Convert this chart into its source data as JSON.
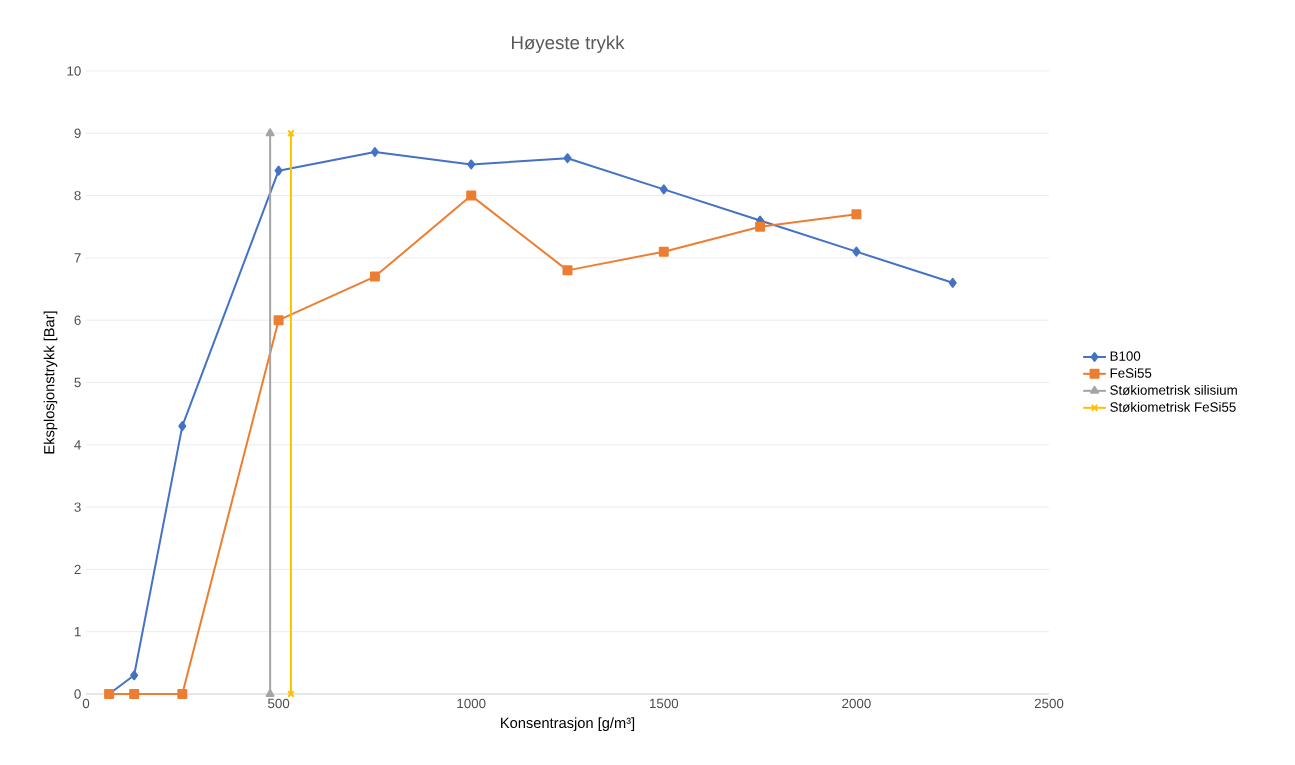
{
  "chart_data": {
    "type": "line",
    "title": "Høyeste trykk",
    "xlabel": "Konsentrasjon [g/m³]",
    "ylabel": "Eksplosjonstrykk [Bar]",
    "xlim": [
      0,
      2500
    ],
    "xticks": [
      0,
      500,
      1000,
      1500,
      2000,
      2500
    ],
    "ylim": [
      0,
      10
    ],
    "yticks": [
      0,
      1,
      2,
      3,
      4,
      5,
      6,
      7,
      8,
      9,
      10
    ],
    "grid": "y",
    "legend": "right",
    "series": [
      {
        "name": "B100",
        "color": "#4472c4",
        "marker": "diamond",
        "x": [
          60,
          125,
          250,
          500,
          750,
          1000,
          1250,
          1500,
          1750,
          2000,
          2250
        ],
        "values": [
          0,
          0.3,
          4.3,
          8.4,
          8.7,
          8.5,
          8.6,
          8.1,
          7.6,
          7.1,
          6.6
        ]
      },
      {
        "name": "FeSi55",
        "color": "#ed7d31",
        "marker": "square",
        "x": [
          60,
          125,
          250,
          500,
          750,
          1000,
          1250,
          1500,
          1750,
          2000
        ],
        "values": [
          0,
          0,
          0,
          6.0,
          6.7,
          8.0,
          6.8,
          7.1,
          7.5,
          7.7
        ]
      },
      {
        "name": "Støkiometrisk silisium",
        "color": "#a5a5a5",
        "marker": "triangle",
        "x": [
          478,
          478
        ],
        "values": [
          0,
          9
        ]
      },
      {
        "name": "Støkiometrisk FeSi55",
        "color": "#ffc000",
        "marker": "cross",
        "x": [
          532,
          532
        ],
        "values": [
          0,
          9
        ]
      }
    ]
  }
}
